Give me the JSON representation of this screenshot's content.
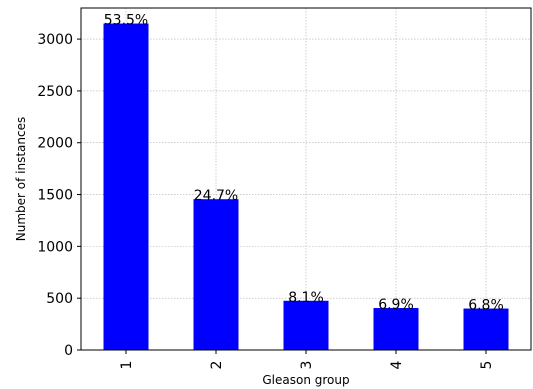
{
  "chart_data": {
    "type": "bar",
    "title": "",
    "xlabel": "Gleason group",
    "ylabel": "Number of instances",
    "categories": [
      "1",
      "2",
      "3",
      "4",
      "5"
    ],
    "values": [
      3150,
      1455,
      475,
      405,
      400
    ],
    "data_labels": [
      "53.5%",
      "24.7%",
      "8.1%",
      "6.9%",
      "6.8%"
    ],
    "ylim": [
      0,
      3300
    ],
    "yticks": [
      0,
      500,
      1000,
      1500,
      2000,
      2500,
      3000
    ],
    "grid": true,
    "bar_color": "#0000ff"
  }
}
